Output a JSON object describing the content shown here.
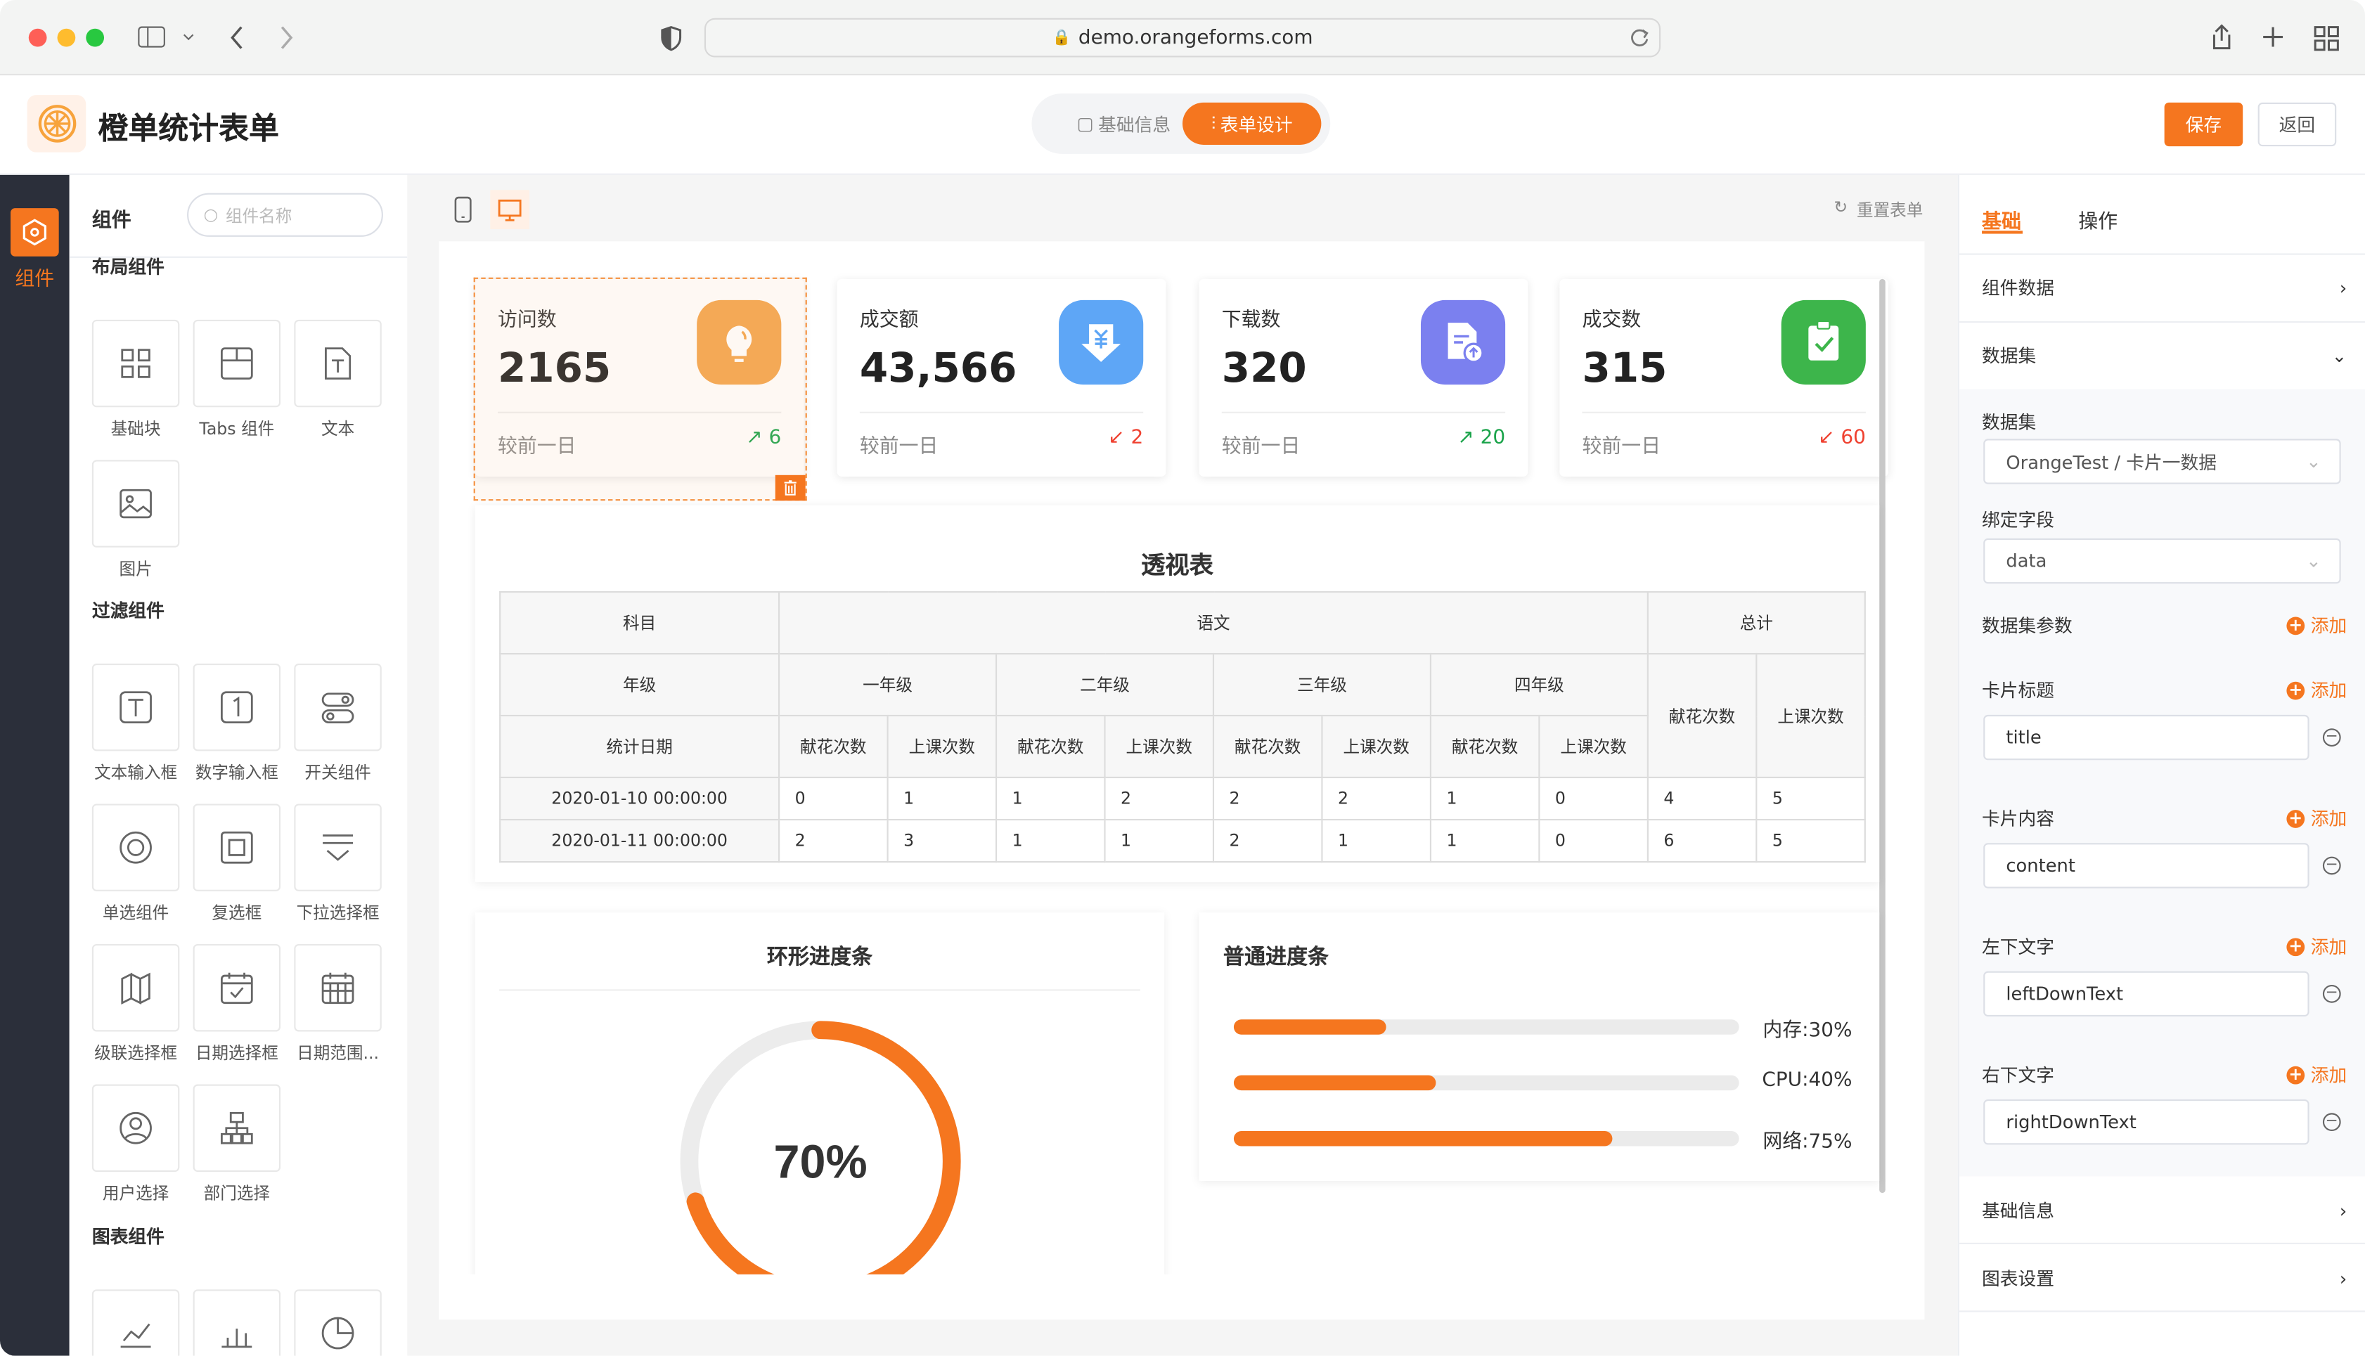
{
  "browser": {
    "url": "demo.orangeforms.com"
  },
  "header": {
    "title": "橙单统计表单",
    "tabs": [
      {
        "label": "基础信息",
        "active": false
      },
      {
        "label": "表单设计",
        "active": true
      }
    ],
    "save": "保存",
    "back": "返回"
  },
  "strip": {
    "label": "组件"
  },
  "components": {
    "title": "组件",
    "search_placeholder": "组件名称",
    "sections": [
      {
        "title": "布局组件",
        "items": [
          {
            "label": "基础块",
            "icon": "grid"
          },
          {
            "label": "Tabs 组件",
            "icon": "tabs"
          },
          {
            "label": "文本",
            "icon": "text-doc"
          },
          {
            "label": "图片",
            "icon": "image"
          }
        ]
      },
      {
        "title": "过滤组件",
        "items": [
          {
            "label": "文本输入框",
            "icon": "text-input"
          },
          {
            "label": "数字输入框",
            "icon": "number-input"
          },
          {
            "label": "开关组件",
            "icon": "switch"
          },
          {
            "label": "单选组件",
            "icon": "radio"
          },
          {
            "label": "复选框",
            "icon": "checkbox"
          },
          {
            "label": "下拉选择框",
            "icon": "select"
          },
          {
            "label": "级联选择框",
            "icon": "cascader"
          },
          {
            "label": "日期选择框",
            "icon": "calendar"
          },
          {
            "label": "日期范围...",
            "icon": "date-range"
          },
          {
            "label": "用户选择",
            "icon": "user"
          },
          {
            "label": "部门选择",
            "icon": "org"
          }
        ]
      },
      {
        "title": "图表组件",
        "items": [
          {
            "label": "",
            "icon": "line-chart"
          },
          {
            "label": "",
            "icon": "bar-chart"
          },
          {
            "label": "",
            "icon": "pie-chart"
          }
        ]
      }
    ]
  },
  "toolbar": {
    "reset": "重置表单"
  },
  "cards": [
    {
      "label": "访问数",
      "value": "2165",
      "compare": "较前一日",
      "delta": "6",
      "trend": "up",
      "icon": "lightbulb",
      "color": "#f4a54d"
    },
    {
      "label": "成交额",
      "value": "43,566",
      "compare": "较前一日",
      "delta": "2",
      "trend": "down",
      "icon": "yen-download",
      "color": "#5ea6f6"
    },
    {
      "label": "下载数",
      "value": "320",
      "compare": "较前一日",
      "delta": "20",
      "trend": "up",
      "icon": "document-upload",
      "color": "#7b80ef"
    },
    {
      "label": "成交数",
      "value": "315",
      "compare": "较前一日",
      "delta": "60",
      "trend": "down",
      "icon": "clipboard-check",
      "color": "#3db54b"
    }
  ],
  "pivot": {
    "title": "透视表",
    "h_subject": "科目",
    "subject": "语文",
    "total": "总计",
    "h_grade": "年级",
    "grades": [
      "一年级",
      "二年级",
      "三年级",
      "四年级"
    ],
    "h_date": "统计日期",
    "m1": "献花次数",
    "m2": "上课次数",
    "rows": [
      {
        "date": "2020-01-10 00:00:00",
        "values": [
          "0",
          "1",
          "1",
          "2",
          "2",
          "2",
          "1",
          "0",
          "4",
          "5"
        ]
      },
      {
        "date": "2020-01-11 00:00:00",
        "values": [
          "2",
          "3",
          "1",
          "1",
          "2",
          "1",
          "1",
          "0",
          "6",
          "5"
        ]
      }
    ]
  },
  "ring": {
    "title": "环形进度条",
    "percent": 70,
    "text": "70%"
  },
  "progress": {
    "title": "普通进度条",
    "items": [
      {
        "label": "内存:30%",
        "percent": 30
      },
      {
        "label": "CPU:40%",
        "percent": 40
      },
      {
        "label": "网络:75%",
        "percent": 75
      }
    ]
  },
  "props": {
    "tabs": [
      "基础",
      "操作"
    ],
    "component_data": "组件数据",
    "dataset_section": "数据集",
    "dataset_label": "数据集",
    "dataset_value": "OrangeTest / 卡片一数据",
    "bind_label": "绑定字段",
    "bind_value": "data",
    "params_label": "数据集参数",
    "add": "添加",
    "fields": [
      {
        "label": "卡片标题",
        "value": "title"
      },
      {
        "label": "卡片内容",
        "value": "content"
      },
      {
        "label": "左下文字",
        "value": "leftDownText"
      },
      {
        "label": "右下文字",
        "value": "rightDownText"
      }
    ],
    "basic_info": "基础信息",
    "chart_settings": "图表设置"
  },
  "colors": {
    "accent": "#f5761f",
    "up": "#1aa34a",
    "down": "#ef4130",
    "sidebar": "#2b2f3a"
  }
}
